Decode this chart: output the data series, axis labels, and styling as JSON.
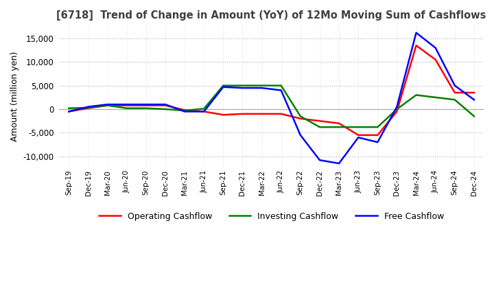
{
  "title": "[6718]  Trend of Change in Amount (YoY) of 12Mo Moving Sum of Cashflows",
  "ylabel": "Amount (million yen)",
  "ylim": [
    -12500,
    18000
  ],
  "yticks": [
    -10000,
    -5000,
    0,
    5000,
    10000,
    15000
  ],
  "x_labels": [
    "Sep-19",
    "Dec-19",
    "Mar-20",
    "Jun-20",
    "Sep-20",
    "Dec-20",
    "Mar-21",
    "Jun-21",
    "Sep-21",
    "Dec-21",
    "Mar-22",
    "Jun-22",
    "Sep-22",
    "Dec-22",
    "Mar-23",
    "Jun-23",
    "Sep-23",
    "Dec-23",
    "Mar-24",
    "Jun-24",
    "Sep-24",
    "Dec-24"
  ],
  "operating": [
    -500,
    200,
    800,
    800,
    800,
    800,
    -200,
    -500,
    -1200,
    -1000,
    -1000,
    -1000,
    -2000,
    -2500,
    -3000,
    -5500,
    -5500,
    -500,
    13500,
    10500,
    3500,
    3500
  ],
  "investing": [
    200,
    300,
    800,
    200,
    200,
    0,
    -300,
    100,
    5000,
    5000,
    5000,
    5000,
    -1500,
    -3800,
    -3800,
    -3800,
    -3800,
    0,
    3000,
    2500,
    2000,
    -1500
  ],
  "free": [
    -500,
    500,
    1000,
    1000,
    1000,
    1000,
    -500,
    -500,
    4700,
    4500,
    4500,
    4000,
    -5500,
    -10800,
    -11500,
    -6000,
    -7000,
    500,
    16200,
    13000,
    5000,
    2000
  ],
  "operating_color": "#ff0000",
  "investing_color": "#008000",
  "free_color": "#0000ff",
  "bg_color": "#ffffff",
  "grid_color": "#b0b0b0",
  "grid_minor_color": "#d0d0d0",
  "title_color": "#404040"
}
